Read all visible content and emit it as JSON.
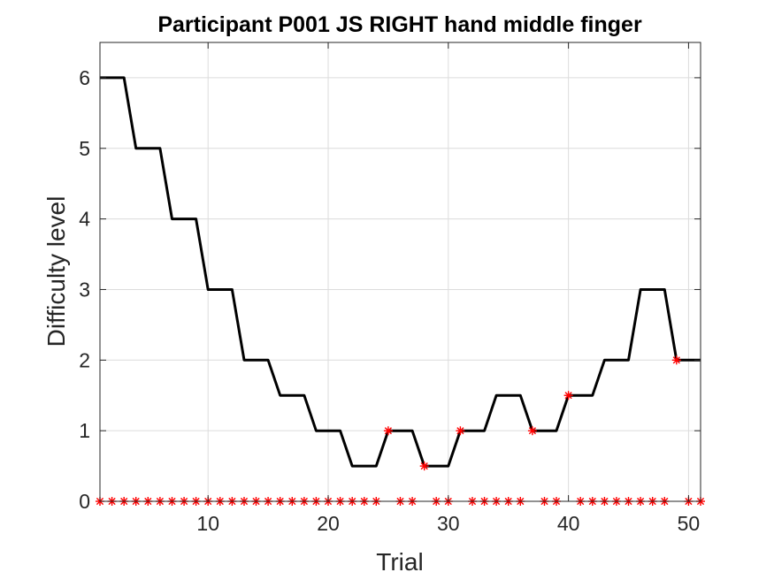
{
  "chart_data": {
    "type": "line",
    "title": "Participant P001 JS RIGHT hand middle finger",
    "xlabel": "Trial",
    "ylabel": "Difficulty level",
    "xlim": [
      1,
      51
    ],
    "ylim": [
      0,
      6.5
    ],
    "xticks": [
      10,
      20,
      30,
      40,
      50
    ],
    "yticks": [
      0,
      1,
      2,
      3,
      4,
      5,
      6
    ],
    "grid": true,
    "colors": {
      "line": "#000000",
      "marker": "#ff0000",
      "grid": "#dcdcdc",
      "axis": "#262626"
    },
    "series": [
      {
        "name": "difficulty",
        "style": "line",
        "x": [
          1,
          2,
          3,
          4,
          5,
          6,
          7,
          8,
          9,
          10,
          11,
          12,
          13,
          14,
          15,
          16,
          17,
          18,
          19,
          20,
          21,
          22,
          23,
          24,
          25,
          26,
          27,
          28,
          29,
          30,
          31,
          32,
          33,
          34,
          35,
          36,
          37,
          38,
          39,
          40,
          41,
          42,
          43,
          44,
          45,
          46,
          47,
          48,
          49,
          50,
          51
        ],
        "y": [
          6,
          6,
          6,
          5,
          5,
          5,
          4,
          4,
          4,
          3,
          3,
          3,
          2,
          2,
          2,
          1.5,
          1.5,
          1.5,
          1,
          1,
          1,
          0.5,
          0.5,
          0.5,
          1,
          1,
          1,
          0.5,
          0.5,
          0.5,
          1,
          1,
          1,
          1.5,
          1.5,
          1.5,
          1,
          1,
          1,
          1.5,
          1.5,
          1.5,
          2,
          2,
          2,
          3,
          3,
          3,
          2,
          2,
          2
        ]
      },
      {
        "name": "markers",
        "style": "marker",
        "marker": "*",
        "x": [
          1,
          2,
          3,
          4,
          5,
          6,
          7,
          8,
          9,
          10,
          11,
          12,
          13,
          14,
          15,
          16,
          17,
          18,
          19,
          20,
          21,
          22,
          23,
          24,
          25,
          26,
          27,
          28,
          29,
          30,
          31,
          32,
          33,
          34,
          35,
          36,
          37,
          38,
          39,
          40,
          41,
          42,
          43,
          44,
          45,
          46,
          47,
          48,
          49,
          50,
          51
        ],
        "y": [
          0,
          0,
          0,
          0,
          0,
          0,
          0,
          0,
          0,
          0,
          0,
          0,
          0,
          0,
          0,
          0,
          0,
          0,
          0,
          0,
          0,
          0,
          0,
          0,
          1,
          0,
          0,
          0.5,
          0,
          0,
          1,
          0,
          0,
          0,
          0,
          0,
          1,
          0,
          0,
          1.5,
          0,
          0,
          0,
          0,
          0,
          0,
          0,
          0,
          2,
          0,
          0
        ]
      }
    ]
  }
}
